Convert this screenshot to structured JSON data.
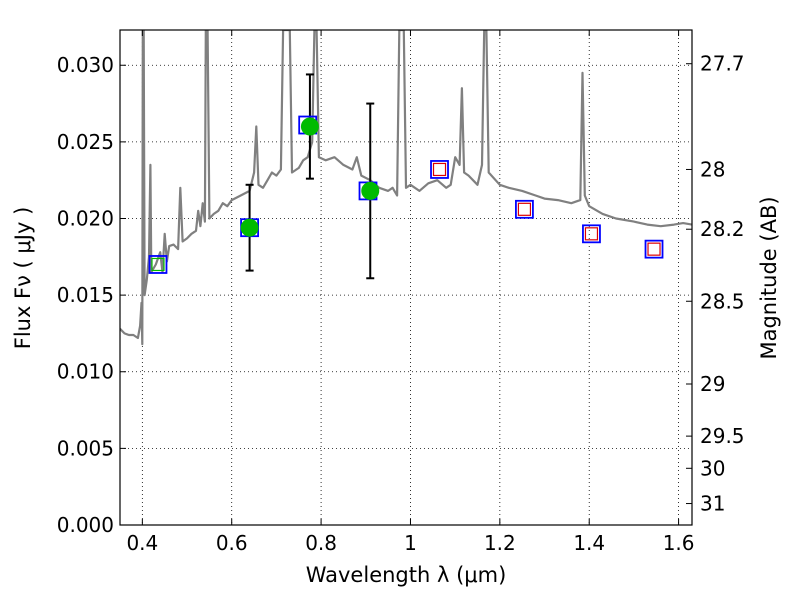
{
  "chart_data": {
    "type": "scatter",
    "xlabel": "Wavelength  λ (μm)",
    "ylabel": "Flux  Fν  ( μJy )",
    "y2label": "Magnitude (AB)",
    "xlim": [
      0.35,
      1.63
    ],
    "ylim": [
      0.0,
      0.0323
    ],
    "grid": true,
    "x_ticks": [
      0.4,
      0.6,
      0.8,
      1.0,
      1.2,
      1.4,
      1.6
    ],
    "x_tick_labels": [
      "0.4",
      "0.6",
      "0.8",
      "1",
      "1.2",
      "1.4",
      "1.6"
    ],
    "y_ticks": [
      0.0,
      0.005,
      0.01,
      0.015,
      0.02,
      0.025,
      0.03
    ],
    "y_tick_labels": [
      "0.000",
      "0.005",
      "0.010",
      "0.015",
      "0.020",
      "0.025",
      "0.030"
    ],
    "y2_ticks": [
      {
        "flux": 0.0301,
        "label": "27.7"
      },
      {
        "flux": 0.0232,
        "label": "28"
      },
      {
        "flux": 0.0193,
        "label": "28.2"
      },
      {
        "flux": 0.0146,
        "label": "28.5"
      },
      {
        "flux": 0.0092,
        "label": "29"
      },
      {
        "flux": 0.0058,
        "label": "29.5"
      },
      {
        "flux": 0.0037,
        "label": "30"
      },
      {
        "flux": 0.0014,
        "label": "31"
      }
    ],
    "colors": {
      "template": "#808080",
      "photometry": "#00bb00",
      "model_box": "#0000ff",
      "ir_limit": "#dd0000",
      "error_bar": "#000000"
    },
    "template_spectrum": [
      [
        0.35,
        0.0128
      ],
      [
        0.36,
        0.0125
      ],
      [
        0.37,
        0.0124
      ],
      [
        0.38,
        0.0124
      ],
      [
        0.39,
        0.0122
      ],
      [
        0.395,
        0.013
      ],
      [
        0.398,
        0.0145
      ],
      [
        0.4,
        0.0118
      ],
      [
        0.401,
        0.0323
      ],
      [
        0.403,
        0.0323
      ],
      [
        0.405,
        0.015
      ],
      [
        0.41,
        0.016
      ],
      [
        0.415,
        0.0175
      ],
      [
        0.418,
        0.0235
      ],
      [
        0.42,
        0.0165
      ],
      [
        0.43,
        0.017
      ],
      [
        0.44,
        0.0178
      ],
      [
        0.445,
        0.0165
      ],
      [
        0.45,
        0.019
      ],
      [
        0.455,
        0.0172
      ],
      [
        0.46,
        0.0182
      ],
      [
        0.47,
        0.0183
      ],
      [
        0.48,
        0.018
      ],
      [
        0.485,
        0.022
      ],
      [
        0.49,
        0.0185
      ],
      [
        0.5,
        0.0187
      ],
      [
        0.51,
        0.019
      ],
      [
        0.52,
        0.0192
      ],
      [
        0.525,
        0.0205
      ],
      [
        0.53,
        0.0195
      ],
      [
        0.535,
        0.021
      ],
      [
        0.54,
        0.0198
      ],
      [
        0.542,
        0.0323
      ],
      [
        0.546,
        0.0323
      ],
      [
        0.55,
        0.02
      ],
      [
        0.56,
        0.0203
      ],
      [
        0.57,
        0.0205
      ],
      [
        0.58,
        0.021
      ],
      [
        0.59,
        0.0208
      ],
      [
        0.6,
        0.0212
      ],
      [
        0.62,
        0.0215
      ],
      [
        0.64,
        0.0218
      ],
      [
        0.65,
        0.023
      ],
      [
        0.655,
        0.026
      ],
      [
        0.66,
        0.0222
      ],
      [
        0.67,
        0.022
      ],
      [
        0.68,
        0.0225
      ],
      [
        0.69,
        0.023
      ],
      [
        0.7,
        0.0228
      ],
      [
        0.71,
        0.0232
      ],
      [
        0.715,
        0.0323
      ],
      [
        0.73,
        0.0323
      ],
      [
        0.735,
        0.023
      ],
      [
        0.75,
        0.0233
      ],
      [
        0.76,
        0.0238
      ],
      [
        0.77,
        0.024
      ],
      [
        0.78,
        0.025
      ],
      [
        0.785,
        0.0323
      ],
      [
        0.79,
        0.0323
      ],
      [
        0.795,
        0.024
      ],
      [
        0.81,
        0.0238
      ],
      [
        0.83,
        0.024
      ],
      [
        0.85,
        0.0235
      ],
      [
        0.87,
        0.0232
      ],
      [
        0.88,
        0.024
      ],
      [
        0.89,
        0.0228
      ],
      [
        0.91,
        0.0225
      ],
      [
        0.93,
        0.022
      ],
      [
        0.95,
        0.0218
      ],
      [
        0.96,
        0.022
      ],
      [
        0.97,
        0.0215
      ],
      [
        0.975,
        0.0323
      ],
      [
        0.985,
        0.0323
      ],
      [
        0.99,
        0.022
      ],
      [
        1.0,
        0.0222
      ],
      [
        1.02,
        0.0218
      ],
      [
        1.04,
        0.0223
      ],
      [
        1.06,
        0.0225
      ],
      [
        1.08,
        0.022
      ],
      [
        1.09,
        0.0222
      ],
      [
        1.1,
        0.024
      ],
      [
        1.11,
        0.0235
      ],
      [
        1.115,
        0.0285
      ],
      [
        1.12,
        0.023
      ],
      [
        1.13,
        0.0228
      ],
      [
        1.15,
        0.0222
      ],
      [
        1.16,
        0.0235
      ],
      [
        1.165,
        0.0323
      ],
      [
        1.17,
        0.0323
      ],
      [
        1.175,
        0.023
      ],
      [
        1.2,
        0.0222
      ],
      [
        1.22,
        0.022
      ],
      [
        1.25,
        0.0218
      ],
      [
        1.28,
        0.0215
      ],
      [
        1.3,
        0.0213
      ],
      [
        1.33,
        0.0212
      ],
      [
        1.36,
        0.021
      ],
      [
        1.38,
        0.0212
      ],
      [
        1.385,
        0.0295
      ],
      [
        1.39,
        0.0215
      ],
      [
        1.4,
        0.0208
      ],
      [
        1.43,
        0.0203
      ],
      [
        1.46,
        0.02
      ],
      [
        1.5,
        0.0198
      ],
      [
        1.53,
        0.0196
      ],
      [
        1.56,
        0.0195
      ],
      [
        1.59,
        0.0196
      ],
      [
        1.61,
        0.0197
      ],
      [
        1.63,
        0.0196
      ]
    ],
    "model_boxes": [
      {
        "x": 0.435,
        "y": 0.017
      },
      {
        "x": 0.64,
        "y": 0.0194
      },
      {
        "x": 0.77,
        "y": 0.0261
      },
      {
        "x": 0.905,
        "y": 0.0218
      },
      {
        "x": 1.065,
        "y": 0.0232
      },
      {
        "x": 1.255,
        "y": 0.0206
      },
      {
        "x": 1.405,
        "y": 0.019
      },
      {
        "x": 1.545,
        "y": 0.018
      }
    ],
    "ir_limits": [
      {
        "x": 1.065,
        "y": 0.0232
      },
      {
        "x": 1.255,
        "y": 0.0206
      },
      {
        "x": 1.405,
        "y": 0.019
      },
      {
        "x": 1.545,
        "y": 0.018
      }
    ],
    "photometry": [
      {
        "x": 0.435,
        "y": 0.017,
        "err": null,
        "marker": "box-only"
      },
      {
        "x": 0.64,
        "y": 0.0194,
        "err": 0.0028
      },
      {
        "x": 0.775,
        "y": 0.026,
        "err": 0.0034
      },
      {
        "x": 0.91,
        "y": 0.0218,
        "err": 0.0057
      }
    ]
  }
}
